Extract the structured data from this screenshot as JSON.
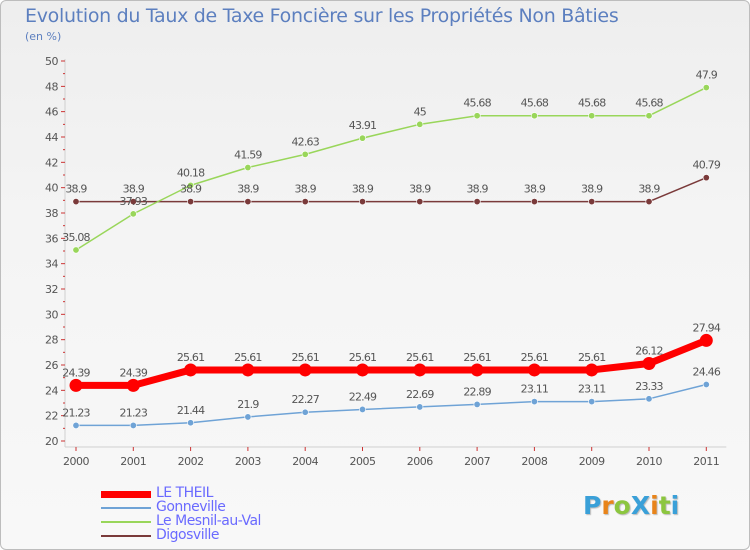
{
  "title": "Evolution du Taux de Taxe Foncière sur les Propriétés Non Bâties",
  "unit": "(en %)",
  "logo": {
    "text": "ProXiti",
    "letters": [
      "P",
      "r",
      "o",
      "X",
      "i",
      "t",
      "i"
    ],
    "colors": [
      "#3aa0d8",
      "#e8841a",
      "#8cc63f",
      "#3aa0d8",
      "#e8841a",
      "#8cc63f",
      "#3aa0d8"
    ]
  },
  "chart_data": {
    "type": "line",
    "title": "Evolution du Taux de Taxe Foncière sur les Propriétés Non Bâties",
    "ylabel": "(en %)",
    "xlabel": "",
    "categories": [
      "2000",
      "2001",
      "2002",
      "2003",
      "2004",
      "2005",
      "2006",
      "2007",
      "2008",
      "2009",
      "2010",
      "2011"
    ],
    "ylim": [
      20,
      50
    ],
    "yticks": [
      20,
      22,
      24,
      26,
      28,
      30,
      32,
      34,
      36,
      38,
      40,
      42,
      44,
      46,
      48,
      50
    ],
    "grid": false,
    "legend": "bottom-left",
    "series": [
      {
        "name": "LE THEIL",
        "color": "#ff0000",
        "values": [
          24.39,
          24.39,
          25.61,
          25.61,
          25.61,
          25.61,
          25.61,
          25.61,
          25.61,
          25.61,
          26.12,
          27.94
        ],
        "labels": [
          "24.39",
          "24.39",
          "25.61",
          "25.61",
          "25.61",
          "25.61",
          "25.61",
          "25.61",
          "25.61",
          "25.61",
          "26.12",
          "27.94"
        ]
      },
      {
        "name": "Gonneville",
        "color": "#6fa3d6",
        "values": [
          21.23,
          21.23,
          21.44,
          21.9,
          22.27,
          22.49,
          22.69,
          22.89,
          23.11,
          23.11,
          23.33,
          24.46
        ],
        "labels": [
          "21.23",
          "21.23",
          "21.44",
          "21.9",
          "22.27",
          "22.49",
          "22.69",
          "22.89",
          "23.11",
          "23.11",
          "23.33",
          "24.46"
        ]
      },
      {
        "name": "Le Mesnil-au-Val",
        "color": "#99d65a",
        "values": [
          35.08,
          37.93,
          40.18,
          41.59,
          42.63,
          43.91,
          45,
          45.68,
          45.68,
          45.68,
          45.68,
          47.9
        ],
        "labels": [
          "35.08",
          "37.93",
          "40.18",
          "41.59",
          "42.63",
          "43.91",
          "45",
          "45.68",
          "45.68",
          "45.68",
          "45.68",
          "47.9"
        ]
      },
      {
        "name": "Digosville",
        "color": "#7a3a3a",
        "values": [
          38.9,
          38.9,
          38.9,
          38.9,
          38.9,
          38.9,
          38.9,
          38.9,
          38.9,
          38.9,
          38.9,
          40.79
        ],
        "labels": [
          "38.9",
          "38.9",
          "38.9",
          "38.9",
          "38.9",
          "38.9",
          "38.9",
          "38.9",
          "38.9",
          "38.9",
          "38.9",
          "40.79"
        ]
      }
    ]
  }
}
